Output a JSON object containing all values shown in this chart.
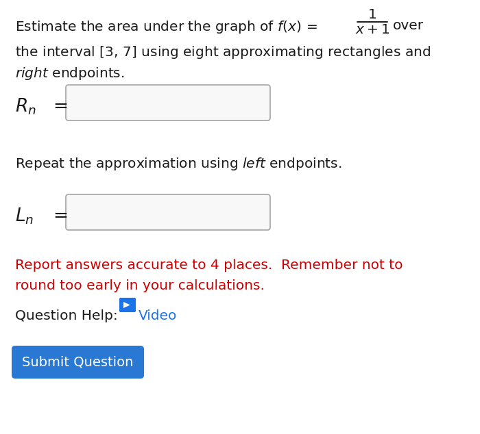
{
  "bg_color": "#ffffff",
  "text_color": "#1a1a1a",
  "red_color": "#cc0000",
  "video_color": "#1a73e8",
  "submit_bg": "#2979d4",
  "submit_text_color": "#ffffff",
  "box_edge_color": "#aaaaaa",
  "box_face_color": "#f8f8f8",
  "line1_left": "Estimate the area under the graph of $f(x)\\,=$",
  "frac_num": "1",
  "frac_den": "x+1",
  "frac_after": "over",
  "line2": "the interval $[3,\\,7]$ using eight approximating rectangles and",
  "line3_italic": "right",
  "line3_rest": " endpoints.",
  "rn_label": "$R_n$",
  "ln_label": "$L_n$",
  "repeat_text_pre": "Repeat the approximation using ",
  "repeat_italic": "left",
  "repeat_post": " endpoints.",
  "red_line1": "Report answers accurate to 4 places.  Remember not to",
  "red_line2": "round too early in your calculations.",
  "qhelp_text": "Question Help:",
  "video_text": "  Video",
  "submit_text": "Submit Question",
  "font_size": 14.5,
  "label_font_size": 19
}
